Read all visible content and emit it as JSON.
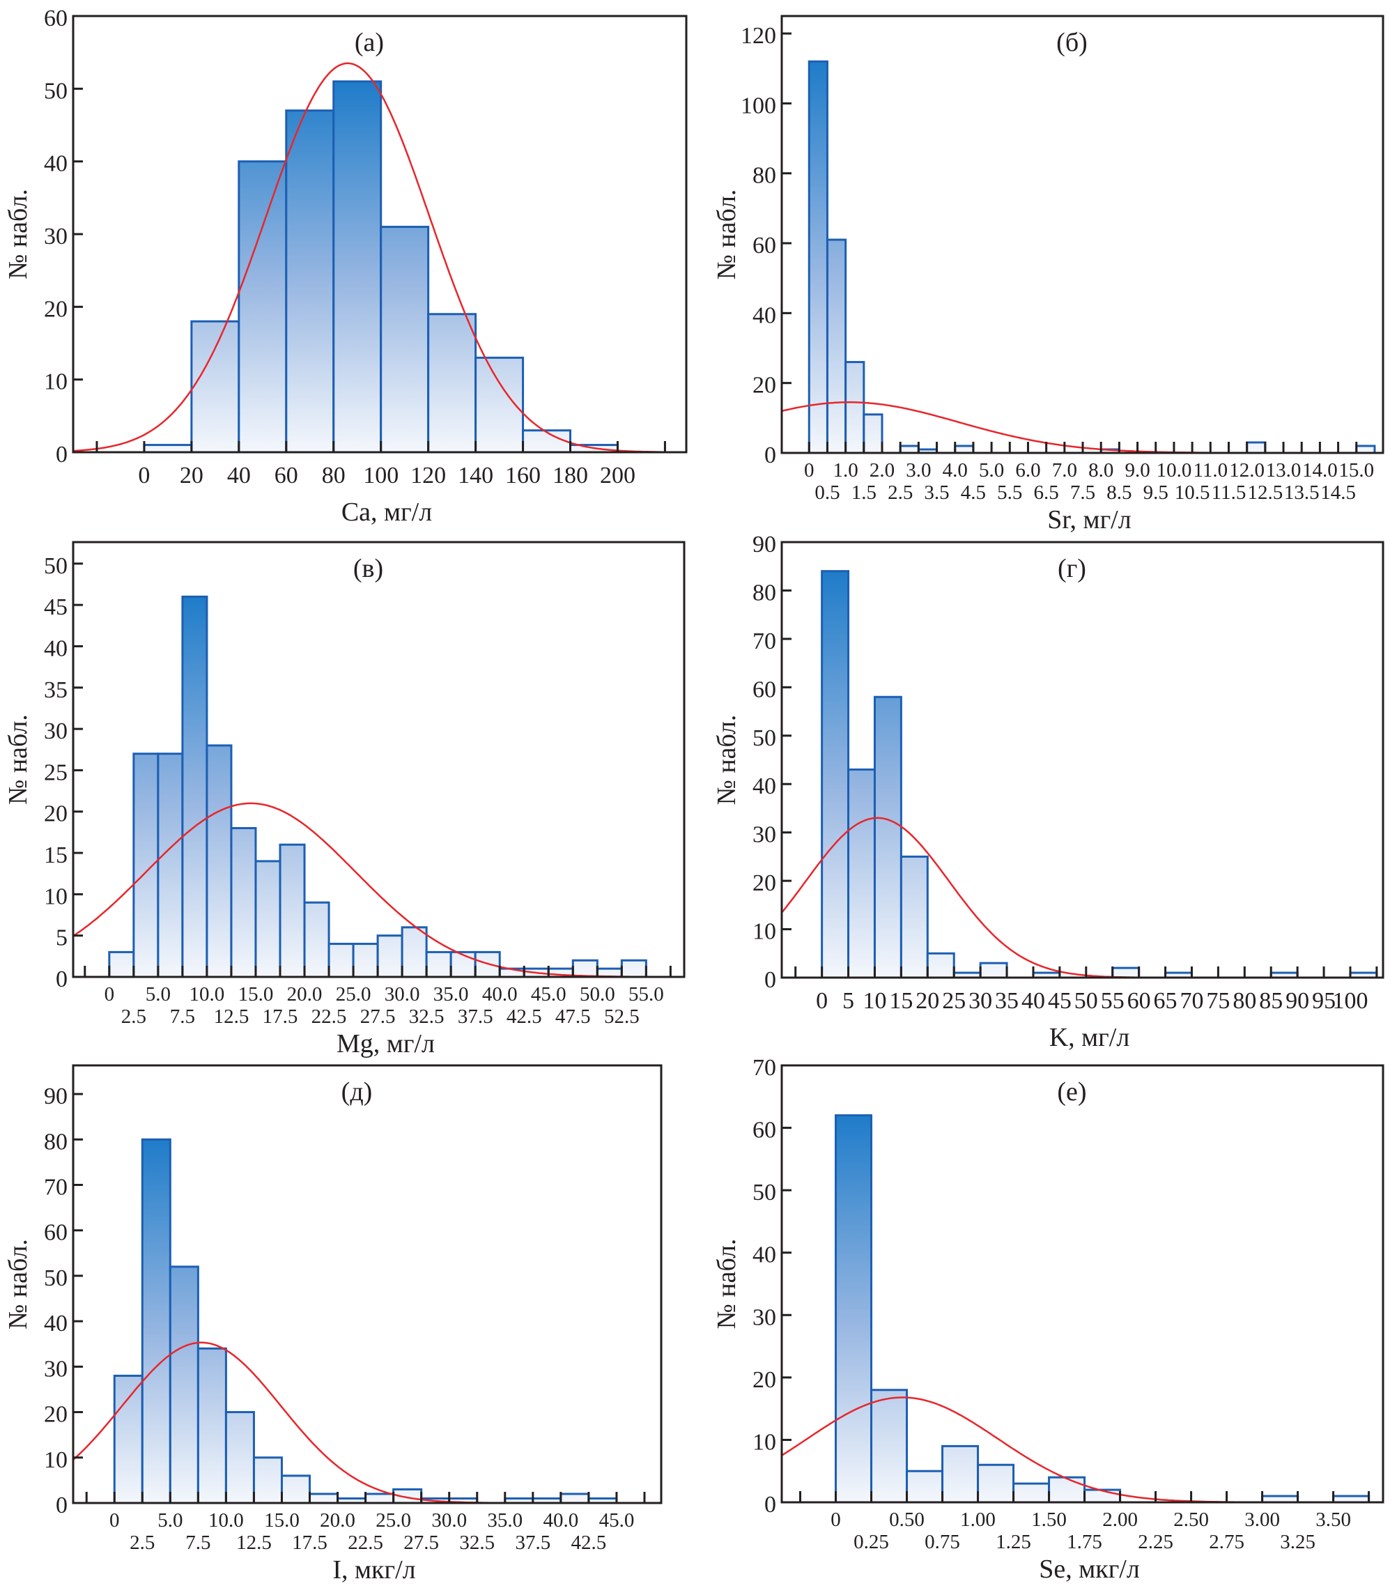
{
  "figure": {
    "panels_order": [
      "a",
      "b",
      "c",
      "d",
      "e",
      "f"
    ]
  },
  "colors": {
    "bar_top": "#1f7cc9",
    "bar_bottom": "#f4f7fc",
    "bar_edge": "#1c5fb3",
    "curve": "#e8262b",
    "axis": "#231f20"
  },
  "chart_data": [
    {
      "id": "a",
      "type": "bar",
      "subtype": "histogram",
      "title": "(а)",
      "xlabel": "Ca, мг/л",
      "ylabel": "№ набл.",
      "bin_width": 20,
      "bin_start": 0,
      "values": [
        1,
        18,
        40,
        47,
        51,
        31,
        19,
        13,
        3,
        1
      ],
      "xlim": [
        -30,
        229
      ],
      "ylim": [
        0,
        60
      ],
      "x_ticks": [
        -20,
        0,
        20,
        40,
        60,
        80,
        100,
        120,
        140,
        160,
        180,
        200,
        220
      ],
      "x_tick_labels_row1": [
        [
          0,
          "0"
        ],
        [
          20,
          "20"
        ],
        [
          40,
          "40"
        ],
        [
          60,
          "60"
        ],
        [
          80,
          "80"
        ],
        [
          100,
          "100"
        ],
        [
          120,
          "120"
        ],
        [
          140,
          "140"
        ],
        [
          160,
          "160"
        ],
        [
          180,
          "180"
        ],
        [
          200,
          "200"
        ]
      ],
      "x_tick_labels_row2": [],
      "y_ticks": [
        0,
        10,
        20,
        30,
        40,
        50,
        60
      ],
      "normal_fit": {
        "peak": 53.5,
        "mean": 86,
        "sd": 34.5
      },
      "grid": false
    },
    {
      "id": "b",
      "type": "bar",
      "subtype": "histogram",
      "title": "(б)",
      "xlabel": "Sr, мг/л",
      "ylabel": "№ набл.",
      "bin_width": 0.5,
      "bin_start": 0,
      "values": [
        112,
        61,
        26,
        11,
        0,
        2,
        1,
        0,
        2,
        0,
        0,
        0,
        0,
        0,
        0,
        0,
        1,
        0,
        0,
        0,
        0,
        0,
        0,
        0,
        3,
        0,
        0,
        0,
        0,
        0,
        2
      ],
      "xlim": [
        -0.75,
        15.73
      ],
      "ylim": [
        0,
        125
      ],
      "x_ticks": [
        0,
        0.5,
        1.0,
        1.5,
        2.0,
        2.5,
        3.0,
        3.5,
        4.0,
        4.5,
        5.0,
        5.5,
        6.0,
        6.5,
        7.0,
        7.5,
        8.0,
        8.5,
        9.0,
        9.5,
        10.0,
        10.5,
        11.0,
        11.5,
        12.0,
        12.5,
        13.0,
        13.5,
        14.0,
        14.5,
        15.0
      ],
      "x_tick_labels_row1": [
        [
          0,
          "0"
        ],
        [
          1,
          "1.0"
        ],
        [
          2,
          "2.0"
        ],
        [
          3,
          "3.0"
        ],
        [
          4,
          "4.0"
        ],
        [
          5,
          "5.0"
        ],
        [
          6,
          "6.0"
        ],
        [
          7,
          "7.0"
        ],
        [
          8,
          "8.0"
        ],
        [
          9,
          "9.0"
        ],
        [
          10,
          "10.0"
        ],
        [
          11,
          "11.0"
        ],
        [
          12,
          "12.0"
        ],
        [
          13,
          "13.0"
        ],
        [
          14,
          "14.0"
        ],
        [
          15,
          "15.0"
        ]
      ],
      "x_tick_labels_row2": [
        [
          0.5,
          "0.5"
        ],
        [
          1.5,
          "1.5"
        ],
        [
          2.5,
          "2.5"
        ],
        [
          3.5,
          "3.5"
        ],
        [
          4.5,
          "4.5"
        ],
        [
          5.5,
          "5.5"
        ],
        [
          6.5,
          "6.5"
        ],
        [
          7.5,
          "7.5"
        ],
        [
          8.5,
          "8.5"
        ],
        [
          9.5,
          "9.5"
        ],
        [
          10.5,
          "10.5"
        ],
        [
          11.5,
          "11.5"
        ],
        [
          12.5,
          "12.5"
        ],
        [
          13.5,
          "13.5"
        ],
        [
          14.5,
          "14.5"
        ]
      ],
      "y_ticks": [
        0,
        20,
        40,
        60,
        80,
        100,
        120
      ],
      "normal_fit": {
        "peak": 14.5,
        "mean": 1.1,
        "sd": 3.0
      },
      "grid": false
    },
    {
      "id": "c",
      "type": "bar",
      "subtype": "histogram",
      "title": "(в)",
      "xlabel": "Mg, мг/л",
      "ylabel": "№ набл.",
      "bin_width": 2.5,
      "bin_start": 0,
      "values": [
        3,
        27,
        27,
        46,
        28,
        18,
        14,
        16,
        9,
        4,
        4,
        5,
        6,
        3,
        3,
        3,
        1,
        1,
        1,
        2,
        1,
        2
      ],
      "xlim": [
        -3.7,
        58.9
      ],
      "ylim": [
        0,
        52.6
      ],
      "x_ticks": [
        -2.5,
        0,
        2.5,
        5,
        7.5,
        10,
        12.5,
        15,
        17.5,
        20,
        22.5,
        25,
        27.5,
        30,
        32.5,
        35,
        37.5,
        40,
        42.5,
        45,
        47.5,
        50,
        52.5,
        55,
        57.5
      ],
      "x_tick_labels_row1": [
        [
          0,
          "0"
        ],
        [
          5,
          "5.0"
        ],
        [
          10,
          "10.0"
        ],
        [
          15,
          "15.0"
        ],
        [
          20,
          "20.0"
        ],
        [
          25,
          "25.0"
        ],
        [
          30,
          "30.0"
        ],
        [
          35,
          "35.0"
        ],
        [
          40,
          "40.0"
        ],
        [
          45,
          "45.0"
        ],
        [
          50,
          "50.0"
        ],
        [
          55,
          "55.0"
        ]
      ],
      "x_tick_labels_row2": [
        [
          2.5,
          "2.5"
        ],
        [
          7.5,
          "7.5"
        ],
        [
          12.5,
          "12.5"
        ],
        [
          17.5,
          "17.5"
        ],
        [
          22.5,
          "22.5"
        ],
        [
          27.5,
          "27.5"
        ],
        [
          32.5,
          "32.5"
        ],
        [
          37.5,
          "37.5"
        ],
        [
          42.5,
          "42.5"
        ],
        [
          47.5,
          "47.5"
        ],
        [
          52.5,
          "52.5"
        ]
      ],
      "y_ticks": [
        0,
        5,
        10,
        15,
        20,
        25,
        30,
        35,
        40,
        45,
        50
      ],
      "normal_fit": {
        "peak": 21,
        "mean": 14.5,
        "sd": 10.7
      },
      "grid": false
    },
    {
      "id": "d",
      "type": "bar",
      "subtype": "histogram",
      "title": "(г)",
      "xlabel": "K, мг/л",
      "ylabel": "№ набл.",
      "bin_width": 5,
      "bin_start": 0,
      "values": [
        84,
        43,
        58,
        25,
        5,
        1,
        3,
        0,
        1,
        0,
        0,
        2,
        0,
        1,
        0,
        0,
        0,
        1,
        0,
        0,
        1
      ],
      "xlim": [
        -7.6,
        106.2
      ],
      "ylim": [
        0,
        90
      ],
      "x_ticks": [
        -5,
        0,
        5,
        10,
        15,
        20,
        25,
        30,
        35,
        40,
        45,
        50,
        55,
        60,
        65,
        70,
        75,
        80,
        85,
        90,
        95,
        100,
        105
      ],
      "x_tick_labels_row1": [
        [
          0,
          "0"
        ],
        [
          5,
          "5"
        ],
        [
          10,
          "10"
        ],
        [
          15,
          "15"
        ],
        [
          20,
          "20"
        ],
        [
          25,
          "25"
        ],
        [
          30,
          "30"
        ],
        [
          35,
          "35"
        ],
        [
          40,
          "40"
        ],
        [
          45,
          "45"
        ],
        [
          50,
          "50"
        ],
        [
          55,
          "55"
        ],
        [
          60,
          "60"
        ],
        [
          65,
          "65"
        ],
        [
          70,
          "70"
        ],
        [
          75,
          "75"
        ],
        [
          80,
          "80"
        ],
        [
          85,
          "85"
        ],
        [
          90,
          "90"
        ],
        [
          95,
          "95"
        ],
        [
          100,
          "100"
        ]
      ],
      "x_tick_labels_row2": [],
      "y_ticks": [
        0,
        10,
        20,
        30,
        40,
        50,
        60,
        70,
        80,
        90
      ],
      "normal_fit": {
        "peak": 33,
        "mean": 10.5,
        "sd": 13.5
      },
      "grid": false
    },
    {
      "id": "e",
      "type": "bar",
      "subtype": "histogram",
      "title": "(д)",
      "xlabel": "I, мкг/л",
      "ylabel": "№ набл.",
      "bin_width": 2.5,
      "bin_start": 0,
      "values": [
        28,
        80,
        52,
        34,
        20,
        10,
        6,
        2,
        1,
        2,
        3,
        1,
        1,
        0,
        1,
        1,
        2,
        1
      ],
      "xlim": [
        -3.7,
        49
      ],
      "ylim": [
        0,
        96.3
      ],
      "x_ticks": [
        -2.5,
        0,
        2.5,
        5,
        7.5,
        10,
        12.5,
        15,
        17.5,
        20,
        22.5,
        25,
        27.5,
        30,
        32.5,
        35,
        37.5,
        40,
        42.5,
        45,
        47.5
      ],
      "x_tick_labels_row1": [
        [
          0,
          "0"
        ],
        [
          5,
          "5.0"
        ],
        [
          10,
          "10.0"
        ],
        [
          15,
          "15.0"
        ],
        [
          20,
          "20.0"
        ],
        [
          25,
          "25.0"
        ],
        [
          30,
          "30.0"
        ],
        [
          35,
          "35.0"
        ],
        [
          40,
          "40.0"
        ],
        [
          45,
          "45.0"
        ]
      ],
      "x_tick_labels_row2": [
        [
          2.5,
          "2.5"
        ],
        [
          7.5,
          "7.5"
        ],
        [
          12.5,
          "12.5"
        ],
        [
          17.5,
          "17.5"
        ],
        [
          22.5,
          "22.5"
        ],
        [
          27.5,
          "27.5"
        ],
        [
          32.5,
          "32.5"
        ],
        [
          37.5,
          "37.5"
        ],
        [
          42.5,
          "42.5"
        ]
      ],
      "y_ticks": [
        0,
        10,
        20,
        30,
        40,
        50,
        60,
        70,
        80,
        90
      ],
      "normal_fit": {
        "peak": 35.3,
        "mean": 7.8,
        "sd": 7.1
      },
      "grid": false
    },
    {
      "id": "f",
      "type": "bar",
      "subtype": "histogram",
      "title": "(е)",
      "xlabel": "Se, мкг/л",
      "ylabel": "№ набл.",
      "bin_width": 0.25,
      "bin_start": 0,
      "values": [
        62,
        18,
        5,
        9,
        6,
        3,
        4,
        2,
        0,
        0,
        0,
        0,
        1,
        0,
        1
      ],
      "xlim": [
        -0.38,
        3.85
      ],
      "ylim": [
        0,
        70
      ],
      "x_ticks": [
        -0.25,
        0,
        0.25,
        0.5,
        0.75,
        1.0,
        1.25,
        1.5,
        1.75,
        2.0,
        2.25,
        2.5,
        2.75,
        3.0,
        3.25,
        3.5,
        3.75
      ],
      "x_tick_labels_row1": [
        [
          0,
          "0"
        ],
        [
          0.5,
          "0.50"
        ],
        [
          1.0,
          "1.00"
        ],
        [
          1.5,
          "1.50"
        ],
        [
          2.0,
          "2.00"
        ],
        [
          2.5,
          "2.50"
        ],
        [
          3.0,
          "3.00"
        ],
        [
          3.5,
          "3.50"
        ]
      ],
      "x_tick_labels_row2": [
        [
          0.25,
          "0.25"
        ],
        [
          0.75,
          "0.75"
        ],
        [
          1.25,
          "1.25"
        ],
        [
          1.75,
          "1.75"
        ],
        [
          2.25,
          "2.25"
        ],
        [
          2.75,
          "2.75"
        ],
        [
          3.25,
          "3.25"
        ]
      ],
      "y_ticks": [
        0,
        10,
        20,
        30,
        40,
        50,
        60,
        70
      ],
      "normal_fit": {
        "peak": 16.8,
        "mean": 0.47,
        "sd": 0.67
      },
      "grid": false
    }
  ]
}
